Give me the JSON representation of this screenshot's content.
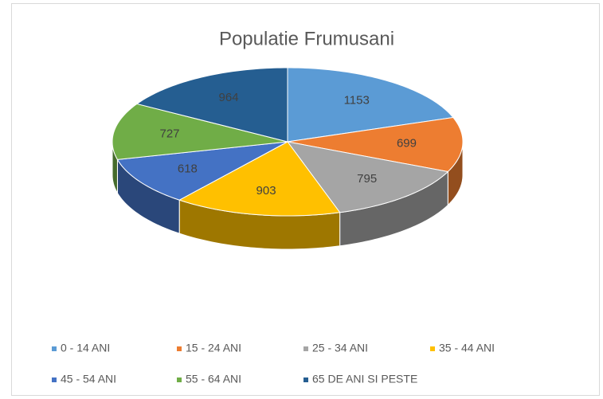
{
  "chart_data": {
    "type": "pie",
    "title": "Populatie Frumusani",
    "categories": [
      "0 - 14 ANI",
      "15 - 24 ANI",
      "25 - 34 ANI",
      "35 - 44 ANI",
      "45 - 54 ANI",
      "55 - 64 ANI",
      "65 DE ANI SI PESTE"
    ],
    "values": [
      1153,
      699,
      795,
      903,
      618,
      727,
      964
    ],
    "colors": [
      "#5b9bd5",
      "#ed7d31",
      "#a5a5a5",
      "#ffc000",
      "#4472c4",
      "#70ad47",
      "#255e91"
    ],
    "legend": "bottom"
  }
}
